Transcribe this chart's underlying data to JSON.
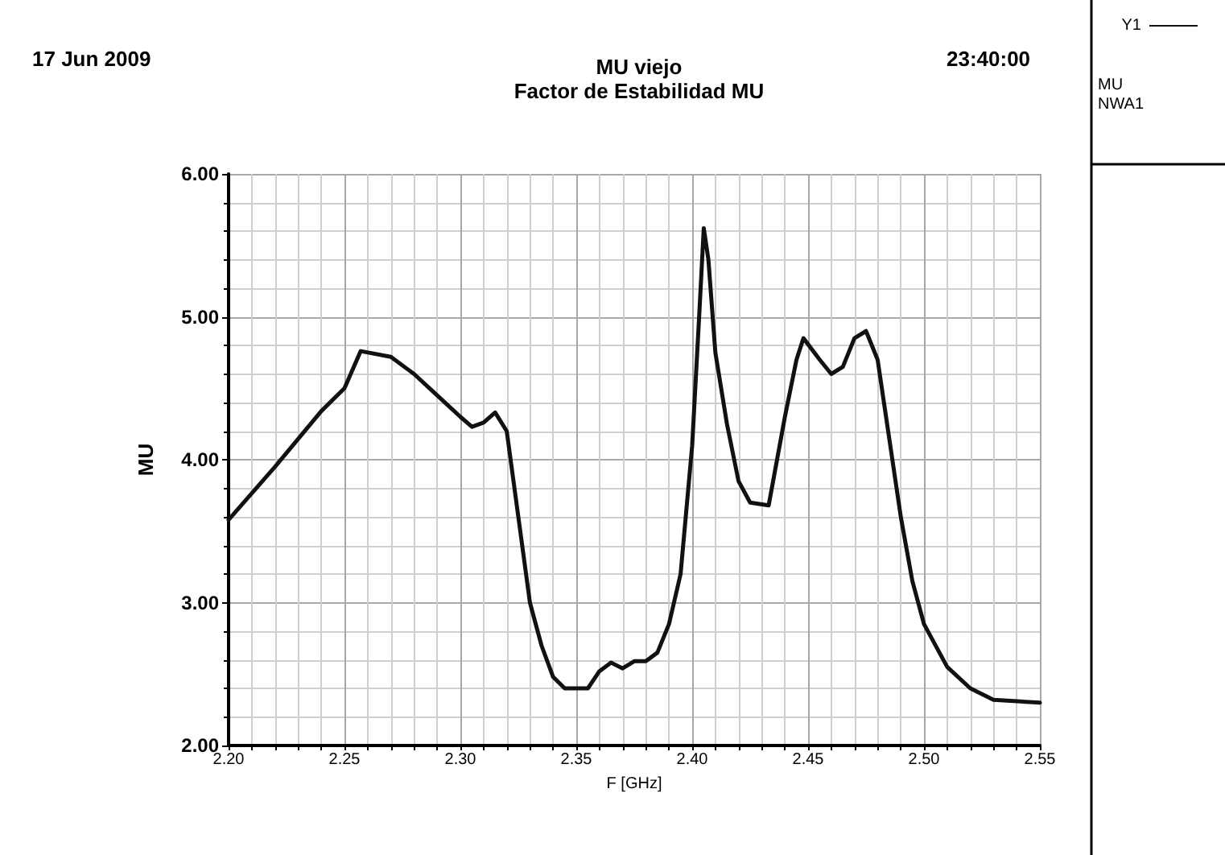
{
  "chart_data": {
    "type": "line",
    "title": "MU viejo",
    "subtitle": "Factor de Estabilidad MU",
    "xlabel": "F [GHz]",
    "ylabel": "MU",
    "annotations": [
      "17 Jun 2009",
      "23:40:00",
      "MU",
      "NWA1"
    ],
    "series": [
      {
        "name": "Y1",
        "color": "#111111",
        "x": [
          2.2,
          2.22,
          2.24,
          2.25,
          2.257,
          2.27,
          2.28,
          2.29,
          2.3,
          2.305,
          2.31,
          2.315,
          2.32,
          2.325,
          2.33,
          2.335,
          2.34,
          2.345,
          2.355,
          2.36,
          2.365,
          2.37,
          2.375,
          2.38,
          2.385,
          2.39,
          2.395,
          2.4,
          2.403,
          2.405,
          2.407,
          2.41,
          2.415,
          2.42,
          2.425,
          2.433,
          2.44,
          2.445,
          2.448,
          2.455,
          2.46,
          2.465,
          2.47,
          2.475,
          2.48,
          2.485,
          2.49,
          2.495,
          2.5,
          2.51,
          2.52,
          2.53,
          2.55
        ],
        "values": [
          3.58,
          3.95,
          4.34,
          4.5,
          4.76,
          4.72,
          4.6,
          4.45,
          4.3,
          4.23,
          4.26,
          4.33,
          4.2,
          3.6,
          3.0,
          2.7,
          2.48,
          2.4,
          2.4,
          2.52,
          2.58,
          2.54,
          2.59,
          2.59,
          2.65,
          2.85,
          3.2,
          4.1,
          5.0,
          5.62,
          5.4,
          4.75,
          4.25,
          3.85,
          3.7,
          3.68,
          4.3,
          4.7,
          4.85,
          4.7,
          4.6,
          4.65,
          4.85,
          4.9,
          4.7,
          4.15,
          3.6,
          3.15,
          2.85,
          2.55,
          2.4,
          2.32,
          2.3
        ]
      }
    ],
    "xlim": [
      2.2,
      2.55
    ],
    "xticks": [
      {
        "value": 2.2,
        "label": "2.20"
      },
      {
        "value": 2.25,
        "label": "2.25"
      },
      {
        "value": 2.3,
        "label": "2.30"
      },
      {
        "value": 2.35,
        "label": "2.35"
      },
      {
        "value": 2.4,
        "label": "2.40"
      },
      {
        "value": 2.45,
        "label": "2.45"
      },
      {
        "value": 2.5,
        "label": "2.50"
      },
      {
        "value": 2.55,
        "label": "2.55"
      }
    ],
    "ylim": [
      2,
      6
    ],
    "yticks": [
      {
        "value": 2,
        "label": "2.00"
      },
      {
        "value": 3,
        "label": "3.00"
      },
      {
        "value": 4,
        "label": "4.00"
      },
      {
        "value": 5,
        "label": "5.00"
      },
      {
        "value": 6,
        "label": "6.00"
      }
    ],
    "grid": true,
    "legend": "right",
    "marker": "none",
    "line_style": "solid"
  }
}
